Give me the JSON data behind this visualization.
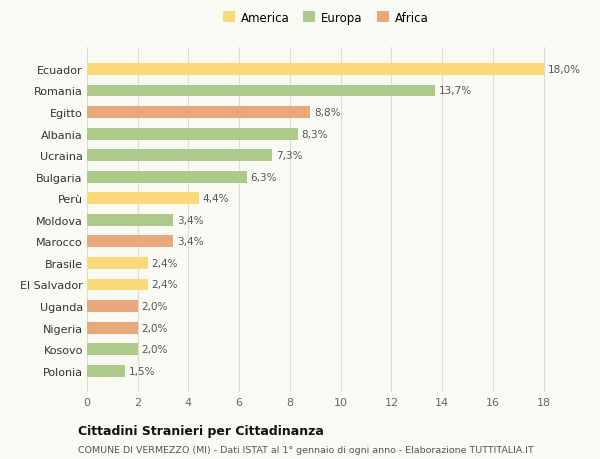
{
  "categories": [
    "Ecuador",
    "Romania",
    "Egitto",
    "Albania",
    "Ucraina",
    "Bulgaria",
    "Perù",
    "Moldova",
    "Marocco",
    "Brasile",
    "El Salvador",
    "Uganda",
    "Nigeria",
    "Kosovo",
    "Polonia"
  ],
  "values": [
    18.0,
    13.7,
    8.8,
    8.3,
    7.3,
    6.3,
    4.4,
    3.4,
    3.4,
    2.4,
    2.4,
    2.0,
    2.0,
    2.0,
    1.5
  ],
  "labels": [
    "18,0%",
    "13,7%",
    "8,8%",
    "8,3%",
    "7,3%",
    "6,3%",
    "4,4%",
    "3,4%",
    "3,4%",
    "2,4%",
    "2,4%",
    "2,0%",
    "2,0%",
    "2,0%",
    "1,5%"
  ],
  "continents": [
    "America",
    "Europa",
    "Africa",
    "Europa",
    "Europa",
    "Europa",
    "America",
    "Europa",
    "Africa",
    "America",
    "America",
    "Africa",
    "Africa",
    "Europa",
    "Europa"
  ],
  "colors": {
    "America": "#F9D97A",
    "Europa": "#AECA8A",
    "Africa": "#E8A87C"
  },
  "legend": [
    "America",
    "Europa",
    "Africa"
  ],
  "title": "Cittadini Stranieri per Cittadinanza",
  "subtitle": "COMUNE DI VERMEZZO (MI) - Dati ISTAT al 1° gennaio di ogni anno - Elaborazione TUTTITALIA.IT",
  "xlim": [
    0,
    18
  ],
  "xticks": [
    0,
    2,
    4,
    6,
    8,
    10,
    12,
    14,
    16,
    18
  ],
  "background_color": "#FAFAF5",
  "grid_color": "#DDDDCC",
  "bar_height": 0.55
}
